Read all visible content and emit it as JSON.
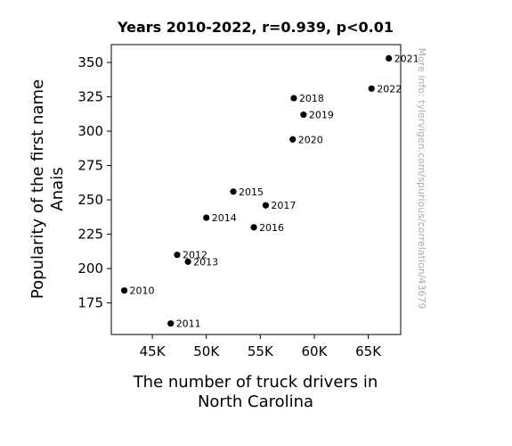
{
  "chart_data": {
    "type": "scatter",
    "title": "Years 2010-2022, r=0.939, p<0.01",
    "xlabel": [
      "The number of truck drivers in",
      "North Carolina"
    ],
    "ylabel": [
      "Popularity of the first name",
      "Anais"
    ],
    "watermark": "More info: tylervigen.com/spurious/correlation/43679",
    "xlim": [
      41200,
      68000
    ],
    "ylim": [
      152,
      363
    ],
    "xticks": [
      45000,
      50000,
      55000,
      60000,
      65000
    ],
    "xtick_labels": [
      "45K",
      "50K",
      "55K",
      "60K",
      "65K"
    ],
    "yticks": [
      175,
      200,
      225,
      250,
      275,
      300,
      325,
      350
    ],
    "ytick_labels": [
      "175",
      "200",
      "225",
      "250",
      "275",
      "300",
      "325",
      "350"
    ],
    "points": [
      {
        "label": "2010",
        "x": 42400,
        "y": 184
      },
      {
        "label": "2011",
        "x": 46700,
        "y": 160
      },
      {
        "label": "2012",
        "x": 47300,
        "y": 210
      },
      {
        "label": "2013",
        "x": 48300,
        "y": 205
      },
      {
        "label": "2014",
        "x": 50000,
        "y": 237
      },
      {
        "label": "2015",
        "x": 52500,
        "y": 256
      },
      {
        "label": "2016",
        "x": 54400,
        "y": 230
      },
      {
        "label": "2017",
        "x": 55500,
        "y": 246
      },
      {
        "label": "2018",
        "x": 58100,
        "y": 324
      },
      {
        "label": "2019",
        "x": 59000,
        "y": 312
      },
      {
        "label": "2020",
        "x": 58000,
        "y": 294
      },
      {
        "label": "2021",
        "x": 66900,
        "y": 353
      },
      {
        "label": "2022",
        "x": 65300,
        "y": 331
      }
    ],
    "marker_color": "#000000",
    "grid": false,
    "legend": "none"
  }
}
